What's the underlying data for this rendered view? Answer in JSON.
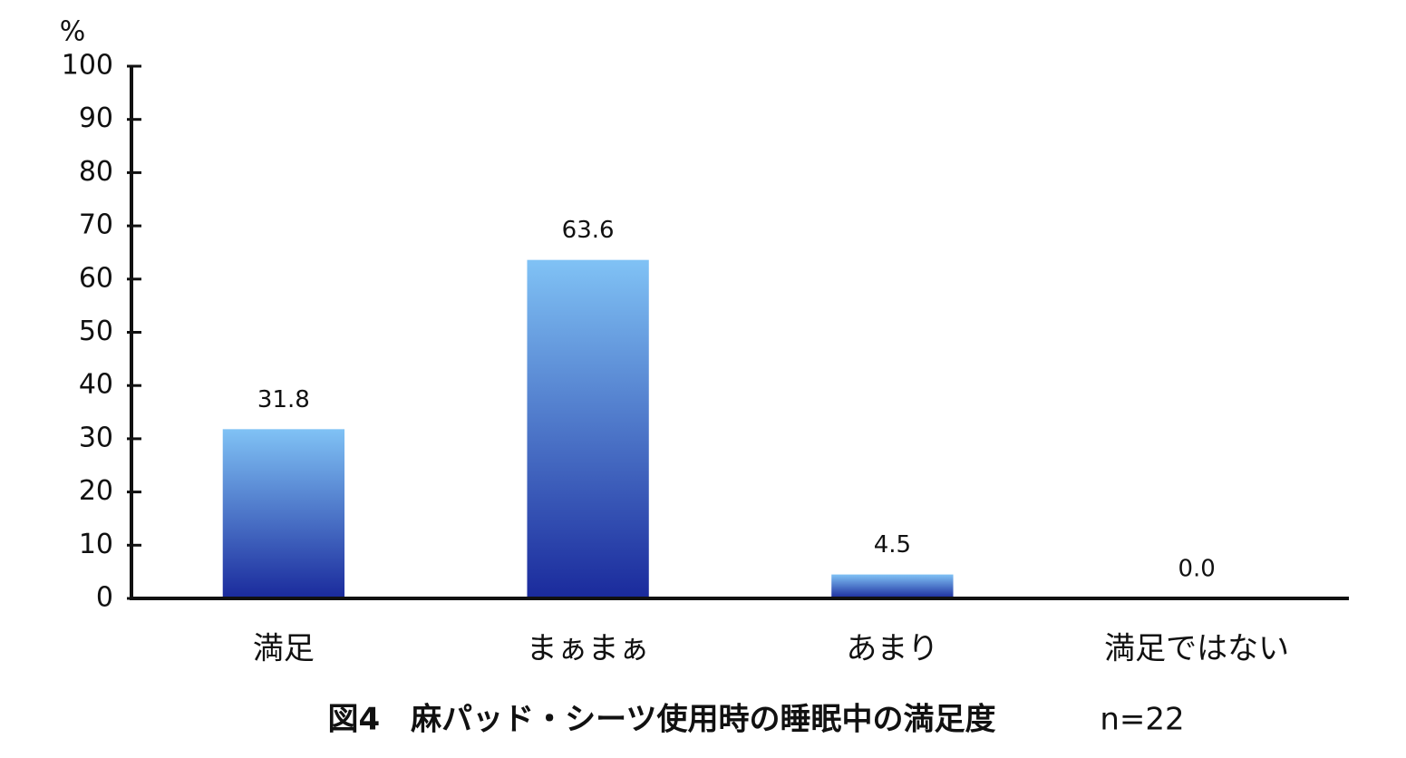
{
  "chart_data": {
    "type": "bar",
    "title": "図4　麻パッド・シーツ使用時の睡眠中の満足度",
    "note": "n=22",
    "y_label": "%",
    "categories": [
      "満足",
      "まぁまぁ",
      "あまり",
      "満足ではない"
    ],
    "values": [
      31.8,
      63.6,
      4.5,
      0.0
    ],
    "value_labels": [
      "31.8",
      "63.6",
      "4.5",
      "0.0"
    ],
    "gradient": [
      "#80c2f5",
      "#1a2a9c"
    ],
    "ylim": [
      0,
      100
    ],
    "yticks": [
      0,
      10,
      20,
      30,
      40,
      50,
      60,
      70,
      80,
      90,
      100
    ],
    "grid": false
  }
}
